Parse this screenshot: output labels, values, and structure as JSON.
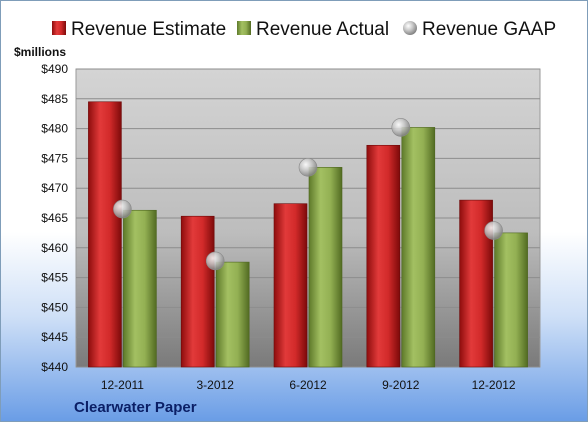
{
  "chart_data": {
    "type": "bar",
    "unit_label": "$millions",
    "company": "Clearwater Paper",
    "categories": [
      "12-2011",
      "3-2012",
      "6-2012",
      "9-2012",
      "12-2012"
    ],
    "ylim": [
      440,
      490
    ],
    "yticks": [
      440,
      445,
      450,
      455,
      460,
      465,
      470,
      475,
      480,
      485,
      490
    ],
    "grid": true,
    "legend_position": "top",
    "series": [
      {
        "name": "Revenue Estimate",
        "kind": "bar",
        "color": "#cc1f1f",
        "values": [
          484.5,
          465.3,
          467.4,
          477.2,
          468.0
        ]
      },
      {
        "name": "Revenue Actual",
        "kind": "bar",
        "color": "#8aa84a",
        "values": [
          466.3,
          457.6,
          473.5,
          480.2,
          462.5
        ]
      },
      {
        "name": "Revenue GAAP",
        "kind": "marker",
        "color": "#b8b8b8",
        "values": [
          466.5,
          457.8,
          473.5,
          480.2,
          462.9
        ]
      }
    ]
  }
}
